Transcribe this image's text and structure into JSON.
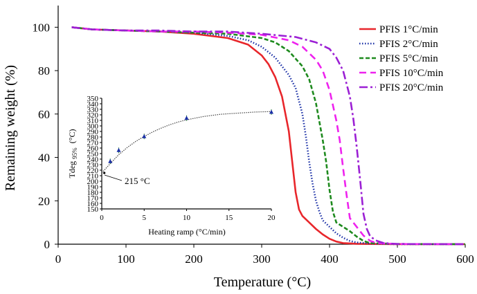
{
  "chart_data": [
    {
      "type": "line",
      "title": "",
      "xlabel": "Temperature (°C)",
      "ylabel": "Remaining weight  (%)",
      "xlim": [
        0,
        600
      ],
      "ylim": [
        0,
        110
      ],
      "xticks": [
        "0",
        "100",
        "200",
        "300",
        "400",
        "500",
        "600"
      ],
      "yticks": [
        "0",
        "20",
        "40",
        "60",
        "80",
        "100"
      ],
      "grid": false,
      "legend_position": "top-right",
      "series": [
        {
          "name": "PFIS 1°C/min",
          "color": "#e8262b",
          "dash": "solid",
          "x": [
            20,
            50,
            100,
            150,
            200,
            250,
            280,
            300,
            310,
            320,
            330,
            340,
            345,
            350,
            355,
            360,
            370,
            380,
            390,
            400,
            410,
            420,
            440,
            460,
            500,
            600
          ],
          "y": [
            100,
            99,
            98.5,
            98,
            97,
            95,
            92,
            87,
            83,
            77,
            68,
            52,
            38,
            24,
            16,
            13,
            10,
            7,
            4.5,
            2.5,
            1.2,
            0.5,
            0.2,
            0.1,
            0,
            0
          ]
        },
        {
          "name": "PFIS 2°C/min",
          "color": "#1a2fa6",
          "dash": "dotted",
          "x": [
            20,
            50,
            100,
            150,
            200,
            250,
            280,
            300,
            320,
            340,
            350,
            360,
            365,
            370,
            375,
            380,
            385,
            390,
            400,
            410,
            420,
            430,
            440,
            460,
            500,
            600
          ],
          "y": [
            100,
            99,
            98.5,
            98,
            97.5,
            96,
            94,
            91,
            86,
            78,
            72,
            60,
            50,
            38,
            28,
            20,
            15,
            11,
            8,
            5,
            3,
            1.5,
            0.8,
            0.3,
            0,
            0
          ]
        },
        {
          "name": "PFIS 5°C/min",
          "color": "#1e8a1e",
          "dash": "dashed",
          "x": [
            20,
            50,
            100,
            150,
            200,
            250,
            300,
            320,
            340,
            360,
            370,
            380,
            390,
            395,
            400,
            405,
            410,
            420,
            430,
            440,
            450,
            460,
            500,
            600
          ],
          "y": [
            100,
            99,
            98.5,
            98,
            97.5,
            97,
            95,
            93,
            89,
            82,
            76,
            65,
            48,
            38,
            25,
            15,
            10,
            8,
            6,
            3.5,
            1.5,
            0.5,
            0.1,
            0
          ]
        },
        {
          "name": "PFIS 10°C/min",
          "color": "#ee22ee",
          "dash": "longdash",
          "x": [
            20,
            50,
            100,
            150,
            200,
            250,
            300,
            340,
            360,
            380,
            390,
            400,
            410,
            415,
            420,
            425,
            430,
            440,
            450,
            460,
            470,
            500,
            600
          ],
          "y": [
            100,
            99,
            98.5,
            98,
            98,
            97.5,
            96.5,
            94,
            91,
            85,
            80,
            71,
            57,
            48,
            35,
            23,
            12,
            8,
            4,
            1.5,
            0.5,
            0.1,
            0
          ]
        },
        {
          "name": "PFIS 20°C/min",
          "color": "#9b1fd4",
          "dash": "dashdot",
          "x": [
            20,
            50,
            100,
            150,
            200,
            250,
            300,
            350,
            380,
            400,
            410,
            420,
            430,
            435,
            440,
            445,
            450,
            455,
            460,
            470,
            480,
            500,
            600
          ],
          "y": [
            100,
            99,
            98.5,
            98.5,
            98,
            98,
            97,
            95.5,
            93,
            90,
            86,
            80,
            68,
            58,
            45,
            30,
            14,
            7,
            3.5,
            1.5,
            0.5,
            0.1,
            0
          ]
        }
      ]
    },
    {
      "type": "scatter",
      "title": "",
      "xlabel": "Heating ramp (°C/min)",
      "ylabel_main": "Tdeg",
      "ylabel_sub": "95%",
      "ylabel_unit": "(°C)",
      "xlim": [
        0,
        20
      ],
      "ylim": [
        150,
        350
      ],
      "xticks": [
        "0",
        "5",
        "10",
        "15",
        "20"
      ],
      "yticks": [
        "150",
        "160",
        "170",
        "180",
        "190",
        "200",
        "210",
        "220",
        "230",
        "240",
        "250",
        "260",
        "270",
        "280",
        "290",
        "300",
        "310",
        "320",
        "330",
        "340",
        "350"
      ],
      "points": {
        "x": [
          1,
          2,
          5,
          10,
          20
        ],
        "y": [
          236,
          256,
          281,
          314,
          325
        ],
        "color": "#1a2fa6"
      },
      "fit_curve": {
        "x": [
          0,
          1,
          2,
          3,
          4,
          5,
          6,
          7,
          8,
          9,
          10,
          12,
          14,
          16,
          18,
          20
        ],
        "y": [
          215,
          232,
          248,
          261,
          272,
          281,
          289,
          296,
          302,
          307,
          311,
          317,
          321,
          323,
          325,
          326
        ]
      },
      "annotation": {
        "text": "215 °C",
        "x": 0.3,
        "y": 215
      }
    }
  ]
}
